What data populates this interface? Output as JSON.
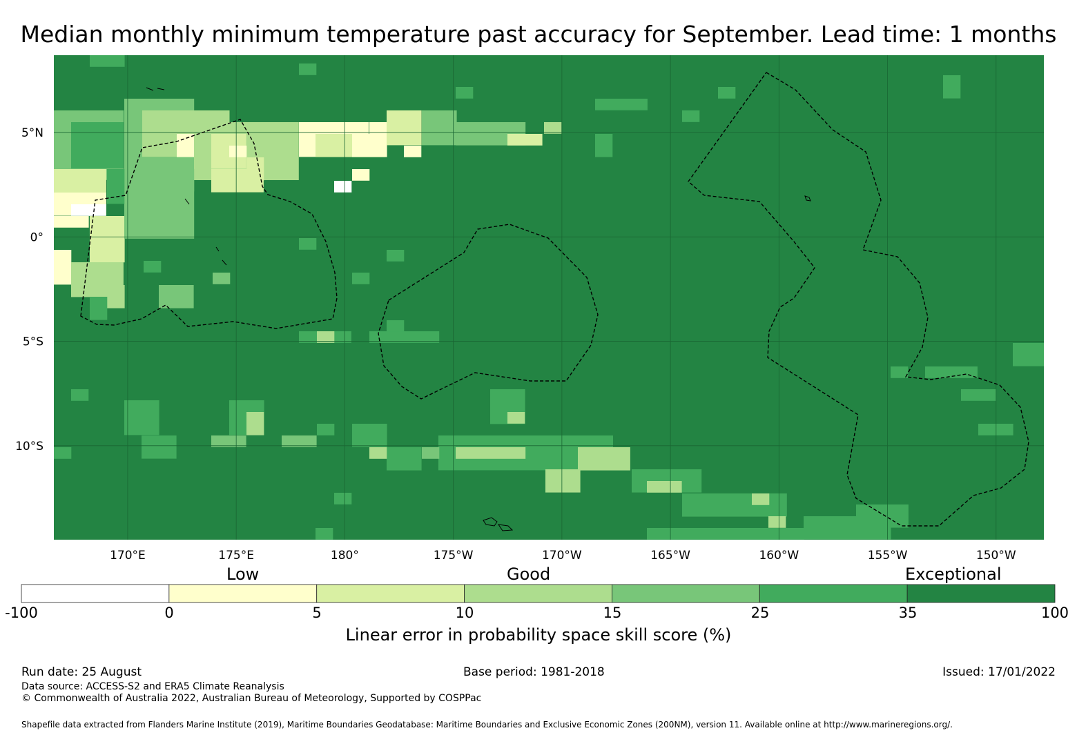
{
  "title": "Median monthly minimum temperature past accuracy for September. Lead time: 1 months",
  "map": {
    "lon_range": [
      166.6,
      212.2
    ],
    "lat_range": [
      -14.5,
      8.7
    ],
    "lon_ticks": [
      {
        "lon": 170,
        "label": "170°E"
      },
      {
        "lon": 175,
        "label": "175°E"
      },
      {
        "lon": 180,
        "label": "180°"
      },
      {
        "lon": 185,
        "label": "175°W"
      },
      {
        "lon": 190,
        "label": "170°W"
      },
      {
        "lon": 195,
        "label": "165°W"
      },
      {
        "lon": 200,
        "label": "160°W"
      },
      {
        "lon": 205,
        "label": "155°W"
      },
      {
        "lon": 210,
        "label": "150°W"
      }
    ],
    "lat_ticks": [
      {
        "lat": 5,
        "label": "5°N"
      },
      {
        "lat": 0,
        "label": "0°"
      },
      {
        "lat": -5,
        "label": "5°S"
      },
      {
        "lat": -10,
        "label": "10°S"
      }
    ],
    "background_class_color": "#238443"
  },
  "colorbar": {
    "category_labels": [
      "Low",
      "Good",
      "Exceptional"
    ],
    "bins": [
      {
        "from": "-100",
        "to": "0",
        "color": "#ffffff"
      },
      {
        "from": "0",
        "to": "5",
        "color": "#ffffcc"
      },
      {
        "from": "5",
        "to": "10",
        "color": "#d9f0a3"
      },
      {
        "from": "10",
        "to": "15",
        "color": "#addd8e"
      },
      {
        "from": "15",
        "to": "25",
        "color": "#78c679"
      },
      {
        "from": "25",
        "to": "35",
        "color": "#41ab5d"
      },
      {
        "from": "35",
        "to": "100",
        "color": "#238443"
      }
    ],
    "tick_labels": [
      "-100",
      "0",
      "5",
      "10",
      "15",
      "25",
      "35",
      "100"
    ],
    "title": "Linear error in probability space skill score (%)"
  },
  "footer": {
    "run_date": "Run date: 25 August",
    "base_period": "Base period: 1981-2018",
    "issued": "Issued: 17/01/2022",
    "data_source": "Data source: ACCESS-S2 and ERA5 Climate Reanalysis",
    "copyright": "© Commonwealth of Australia 2022, Australian Bureau of Meteorology, Supported by COSPPac",
    "shapefile_note": "Shapefile data extracted from Flanders Marine Institute (2019), Maritime Boundaries Geodatabase: Maritime Boundaries and Exclusive Economic Zones (200NM), version 11. Available online at http://www.marineregions.org/."
  }
}
